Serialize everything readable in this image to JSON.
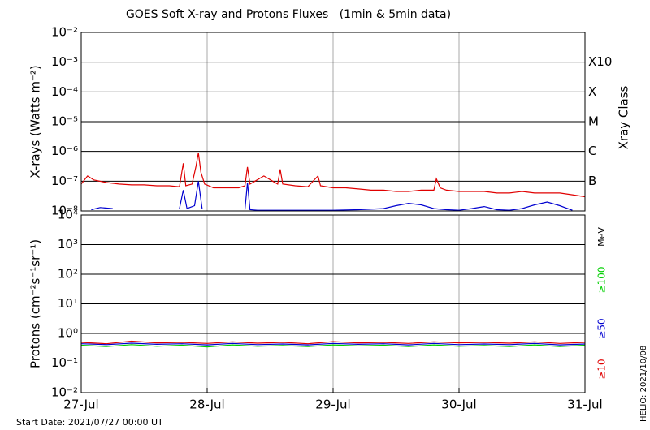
{
  "title": "GOES Soft X-ray and Protons Fluxes   (1min & 5min data)",
  "start_date": "Start Date: 2021/07/27 00:00 UT",
  "stamp": "HELIO: 2021/10/08",
  "chart_data": [
    {
      "type": "line",
      "ylabel": "X-rays (Watts m⁻²)",
      "y2label": "Xray Class",
      "log_y": true,
      "xlim": [
        0,
        4
      ],
      "ylim": [
        1e-08,
        0.01
      ],
      "yticks": [
        {
          "value": 1e-08,
          "label": "10⁻⁸"
        },
        {
          "value": 1e-07,
          "label": "10⁻⁷"
        },
        {
          "value": 1e-06,
          "label": "10⁻⁶"
        },
        {
          "value": 1e-05,
          "label": "10⁻⁵"
        },
        {
          "value": 0.0001,
          "label": "10⁻⁴"
        },
        {
          "value": 0.001,
          "label": "10⁻³"
        },
        {
          "value": 0.01,
          "label": "10⁻²"
        }
      ],
      "y2lim": [
        1e-08,
        0.01
      ],
      "y2ticks": [
        {
          "value": 1e-07,
          "label": "B"
        },
        {
          "value": 1e-06,
          "label": "C"
        },
        {
          "value": 1e-05,
          "label": "M"
        },
        {
          "value": 0.0001,
          "label": "X"
        },
        {
          "value": 0.001,
          "label": "X10"
        }
      ],
      "series": [
        {
          "color": "#e00000",
          "x": [
            0,
            0.05,
            0.1,
            0.2,
            0.3,
            0.4,
            0.5,
            0.6,
            0.7,
            0.78,
            0.81,
            0.83,
            0.88,
            0.91,
            0.93,
            0.95,
            0.98,
            1.05,
            1.15,
            1.25,
            1.3,
            1.32,
            1.34,
            1.38,
            1.45,
            1.52,
            1.56,
            1.58,
            1.6,
            1.7,
            1.8,
            1.88,
            1.9,
            2.0,
            2.1,
            2.2,
            2.3,
            2.4,
            2.5,
            2.6,
            2.7,
            2.8,
            2.82,
            2.85,
            2.9,
            3.0,
            3.1,
            3.2,
            3.3,
            3.4,
            3.5,
            3.6,
            3.7,
            3.8,
            3.9,
            4.0
          ],
          "values": [
            8e-08,
            1.5e-07,
            1.1e-07,
            9e-08,
            8e-08,
            7.5e-08,
            7.5e-08,
            7e-08,
            7e-08,
            6.5e-08,
            4e-07,
            7e-08,
            8e-08,
            3e-07,
            9e-07,
            2e-07,
            8e-08,
            6e-08,
            6e-08,
            6e-08,
            7e-08,
            3e-07,
            8e-08,
            1e-07,
            1.5e-07,
            1e-07,
            8e-08,
            2.5e-07,
            8e-08,
            7e-08,
            6.5e-08,
            1.5e-07,
            7e-08,
            6e-08,
            6e-08,
            5.5e-08,
            5e-08,
            5e-08,
            4.5e-08,
            4.5e-08,
            5e-08,
            5e-08,
            1.2e-07,
            6e-08,
            5e-08,
            4.5e-08,
            4.5e-08,
            4.5e-08,
            4e-08,
            4e-08,
            4.5e-08,
            4e-08,
            4e-08,
            4e-08,
            3.5e-08,
            3e-08
          ]
        },
        {
          "color": "#0000d0",
          "x": [
            0.08,
            0.15,
            0.25,
            0.3,
            0.78,
            0.81,
            0.84,
            0.9,
            0.93,
            0.96,
            1.0,
            1.3,
            1.32,
            1.34,
            1.4,
            1.6,
            1.8,
            2.0,
            2.2,
            2.4,
            2.5,
            2.6,
            2.7,
            2.8,
            2.9,
            3.0,
            3.1,
            3.2,
            3.3,
            3.4,
            3.5,
            3.6,
            3.7,
            3.8,
            3.9
          ],
          "values": [
            1.1e-08,
            1.3e-08,
            1.2e-08,
            null,
            1.2e-08,
            5e-08,
            1.2e-08,
            1.5e-08,
            1e-07,
            1.2e-08,
            null,
            1.1e-08,
            9e-08,
            1.1e-08,
            1.05e-08,
            1.05e-08,
            1.05e-08,
            1.05e-08,
            1.1e-08,
            1.2e-08,
            1.5e-08,
            1.8e-08,
            1.6e-08,
            1.2e-08,
            1.1e-08,
            1.05e-08,
            1.2e-08,
            1.4e-08,
            1.1e-08,
            1.05e-08,
            1.2e-08,
            1.6e-08,
            2e-08,
            1.5e-08,
            1.05e-08
          ]
        }
      ]
    },
    {
      "type": "line",
      "ylabel": "Protons (cm⁻²s⁻¹sr⁻¹)",
      "unit": "MeV",
      "log_y": true,
      "xlim": [
        0,
        4
      ],
      "ylim": [
        0.01,
        10000
      ],
      "xticks": [
        {
          "value": 0,
          "label": "27-Jul"
        },
        {
          "value": 1,
          "label": "28-Jul"
        },
        {
          "value": 2,
          "label": "29-Jul"
        },
        {
          "value": 3,
          "label": "30-Jul"
        },
        {
          "value": 4,
          "label": "31-Jul"
        }
      ],
      "yticks": [
        {
          "value": 0.01,
          "label": "10⁻²"
        },
        {
          "value": 0.1,
          "label": "10⁻¹"
        },
        {
          "value": 1,
          "label": "10⁰"
        },
        {
          "value": 10,
          "label": "10¹"
        },
        {
          "value": 100,
          "label": "10²"
        },
        {
          "value": 1000,
          "label": "10³"
        },
        {
          "value": 10000,
          "label": "10⁴"
        }
      ],
      "threshold": 10,
      "series": [
        {
          "name": "≥10",
          "color": "#e00000",
          "x": [
            0,
            0.2,
            0.4,
            0.6,
            0.8,
            1,
            1.2,
            1.4,
            1.6,
            1.8,
            2,
            2.2,
            2.4,
            2.6,
            2.8,
            3,
            3.2,
            3.4,
            3.6,
            3.8,
            4
          ],
          "values": [
            0.5,
            0.45,
            0.55,
            0.48,
            0.5,
            0.46,
            0.52,
            0.47,
            0.5,
            0.45,
            0.53,
            0.48,
            0.5,
            0.46,
            0.52,
            0.48,
            0.5,
            0.47,
            0.52,
            0.46,
            0.5
          ]
        },
        {
          "name": "≥50",
          "color": "#0000d0",
          "x": [
            0,
            0.2,
            0.4,
            0.6,
            0.8,
            1,
            1.2,
            1.4,
            1.6,
            1.8,
            2,
            2.2,
            2.4,
            2.6,
            2.8,
            3,
            3.2,
            3.4,
            3.6,
            3.8,
            4
          ],
          "values": [
            0.45,
            0.42,
            0.47,
            0.43,
            0.45,
            0.41,
            0.46,
            0.42,
            0.44,
            0.41,
            0.46,
            0.43,
            0.45,
            0.41,
            0.46,
            0.42,
            0.44,
            0.42,
            0.46,
            0.41,
            0.44
          ]
        },
        {
          "name": "≥100",
          "color": "#00d000",
          "x": [
            0,
            0.2,
            0.4,
            0.6,
            0.8,
            1,
            1.2,
            1.4,
            1.6,
            1.8,
            2,
            2.2,
            2.4,
            2.6,
            2.8,
            3,
            3.2,
            3.4,
            3.6,
            3.8,
            4
          ],
          "values": [
            0.4,
            0.36,
            0.42,
            0.37,
            0.4,
            0.35,
            0.41,
            0.37,
            0.39,
            0.36,
            0.41,
            0.38,
            0.4,
            0.36,
            0.41,
            0.37,
            0.39,
            0.36,
            0.41,
            0.36,
            0.4
          ]
        }
      ]
    }
  ]
}
